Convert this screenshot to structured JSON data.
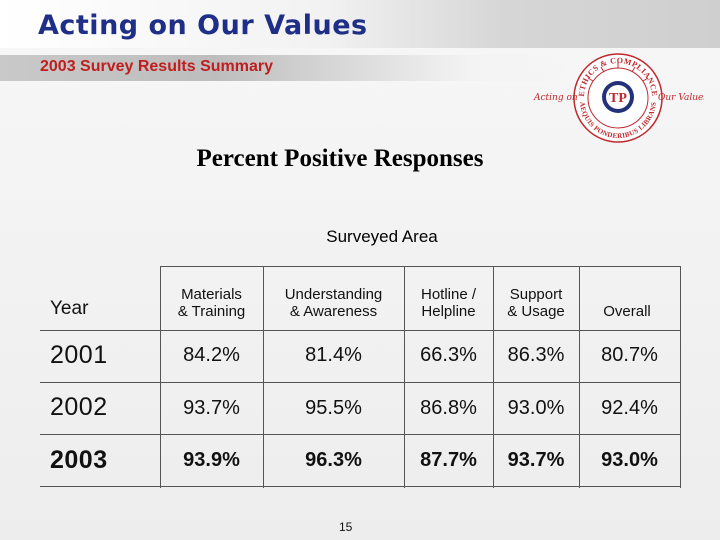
{
  "header": {
    "title": "Acting on Our Values",
    "subtitle": "2003 Survey Results Summary"
  },
  "logo": {
    "icon": "ethics-compliance-seal",
    "ring_top_text": "ETHICS & COMPLIANCE",
    "ring_bottom_text": "AEQUIS PONDERIBUS LIBRANS",
    "left_script": "Acting on",
    "right_script": "Our Values",
    "center_mark": "TP",
    "colors": {
      "red": "#c0282d",
      "blue": "#23307a"
    }
  },
  "section_title": "Percent Positive Responses",
  "table": {
    "group_label": "Surveyed Area",
    "year_header": "Year",
    "columns": [
      {
        "line1": "Materials",
        "line2": "& Training"
      },
      {
        "line1": "Understanding",
        "line2": "& Awareness"
      },
      {
        "line1": "Hotline /",
        "line2": "Helpline"
      },
      {
        "line1": "Support",
        "line2": "& Usage"
      },
      {
        "line1": "",
        "line2": "Overall"
      }
    ],
    "rows": [
      {
        "year": "2001",
        "values": [
          "84.2%",
          "81.4%",
          "66.3%",
          "86.3%",
          "80.7%"
        ]
      },
      {
        "year": "2002",
        "values": [
          "93.7%",
          "95.5%",
          "86.8%",
          "93.0%",
          "92.4%"
        ]
      },
      {
        "year": "2003",
        "values": [
          "93.9%",
          "96.3%",
          "87.7%",
          "93.7%",
          "93.0%"
        ]
      }
    ]
  },
  "footer": {
    "page_number": "15"
  }
}
